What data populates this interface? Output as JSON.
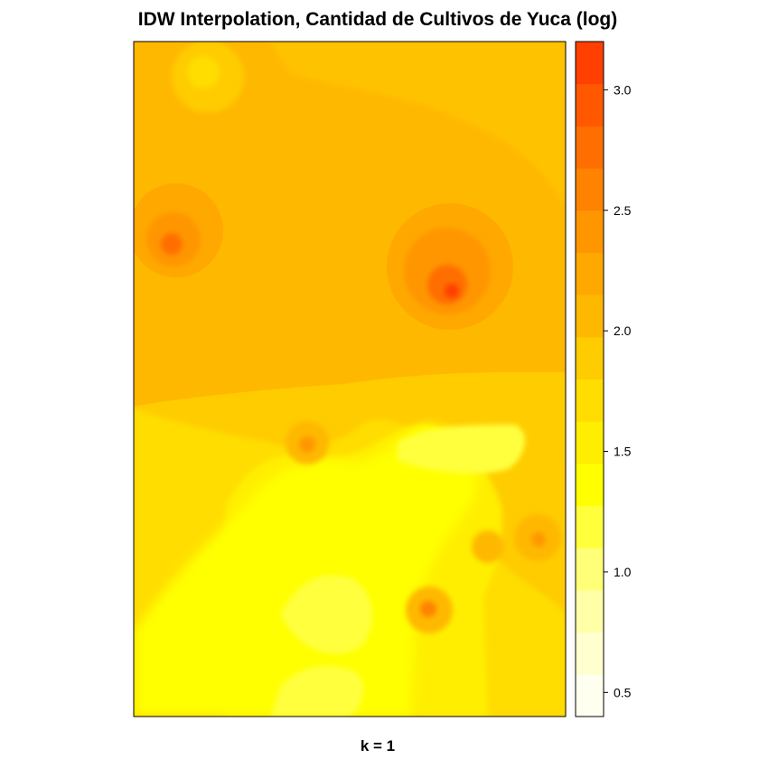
{
  "chart_data": {
    "type": "heatmap",
    "title": "IDW Interpolation, Cantidad de Cultivos de Yuca (log)",
    "xlabel": "k = 1",
    "ylabel": "",
    "colorbar": {
      "min": 0.4,
      "max": 3.2,
      "step": 0.175,
      "ticks": [
        0.5,
        1.0,
        1.5,
        2.0,
        2.5,
        3.0
      ],
      "tick_labels": [
        "0.5",
        "1.0",
        "1.5",
        "2.0",
        "2.5",
        "3.0"
      ],
      "colors": [
        "#FFFFF0",
        "#FFFFD0",
        "#FFFFA8",
        "#FFFF78",
        "#FFFF3C",
        "#FFFF00",
        "#FFEE00",
        "#FFDD00",
        "#FFCC00",
        "#FFB800",
        "#FFA800",
        "#FF9600",
        "#FF8200",
        "#FF6E00",
        "#FF5800",
        "#FF4000",
        "#FF2800",
        "#FF0000"
      ]
    },
    "grid": false
  }
}
